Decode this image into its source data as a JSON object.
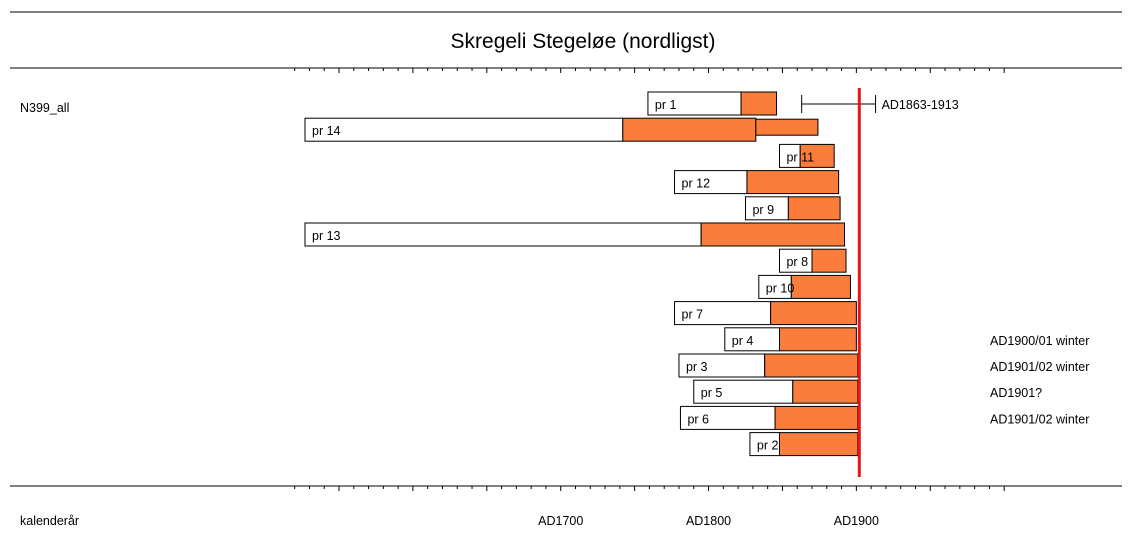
{
  "chart_data": {
    "type": "bar",
    "title": "Skregeli Stegeløe (nordligst)",
    "series_label": "N399_all",
    "xlabel": "kalenderår",
    "x_ticks": [
      "AD1700",
      "AD1800",
      "AD1900"
    ],
    "x_tick_values": [
      1700,
      1800,
      1900
    ],
    "xlim": [
      1527,
      1985
    ],
    "colors": {
      "heartwood": "#ffffff",
      "sapwood": "#fa7d3c",
      "felling_line": "#e8151b",
      "frame": "#000000"
    },
    "felling_line_year": 1902,
    "range_marker": {
      "label": "AD1863-1913",
      "start": 1863,
      "end": 1913
    },
    "bars": [
      {
        "label": "pr 1",
        "start": 1759,
        "sapwood_start": 1822,
        "end": 1846,
        "note": ""
      },
      {
        "label": "pr 14",
        "start": 1527,
        "sapwood_start": 1742,
        "end": 1832,
        "extension_end": 1874,
        "note": ""
      },
      {
        "label": "pr 11",
        "start": 1848,
        "sapwood_start": 1862,
        "end": 1885,
        "note": ""
      },
      {
        "label": "pr 12",
        "start": 1777,
        "sapwood_start": 1826,
        "end": 1888,
        "note": ""
      },
      {
        "label": "pr 9",
        "start": 1825,
        "sapwood_start": 1854,
        "end": 1889,
        "note": ""
      },
      {
        "label": "pr 13",
        "start": 1527,
        "sapwood_start": 1795,
        "end": 1892,
        "note": ""
      },
      {
        "label": "pr 8",
        "start": 1848,
        "sapwood_start": 1870,
        "end": 1893,
        "note": ""
      },
      {
        "label": "pr 10",
        "start": 1834,
        "sapwood_start": 1856,
        "end": 1896,
        "note": ""
      },
      {
        "label": "pr 7",
        "start": 1777,
        "sapwood_start": 1842,
        "end": 1900,
        "note": ""
      },
      {
        "label": "pr 4",
        "start": 1811,
        "sapwood_start": 1848,
        "end": 1900,
        "note": "AD1900/01 winter"
      },
      {
        "label": "pr 3",
        "start": 1780,
        "sapwood_start": 1838,
        "end": 1901,
        "note": "AD1901/02 winter"
      },
      {
        "label": "pr 5",
        "start": 1790,
        "sapwood_start": 1857,
        "end": 1901,
        "note": "AD1901?"
      },
      {
        "label": "pr 6",
        "start": 1781,
        "sapwood_start": 1845,
        "end": 1901,
        "note": "AD1901/02 winter"
      },
      {
        "label": "pr 2",
        "start": 1828,
        "sapwood_start": 1848,
        "end": 1901,
        "note": ""
      }
    ]
  }
}
